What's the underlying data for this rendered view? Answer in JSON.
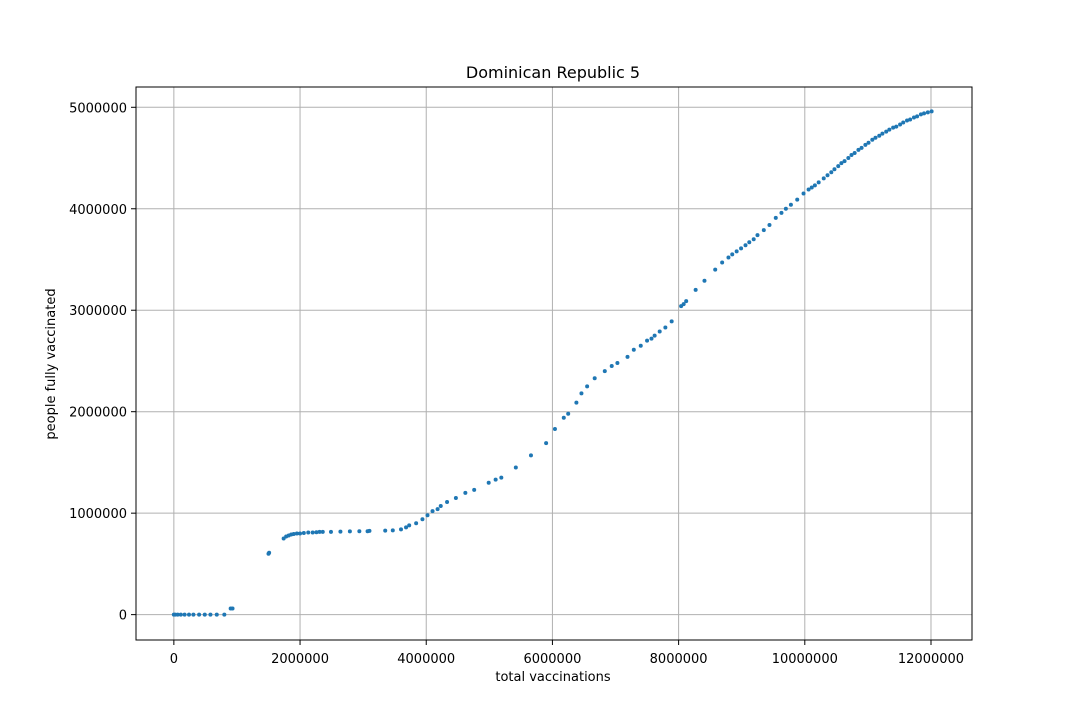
{
  "chart_data": {
    "type": "scatter",
    "title": "Dominican Republic 5",
    "xlabel": "total vaccinations",
    "ylabel": "people fully vaccinated",
    "xlim": [
      -600000,
      12650000
    ],
    "ylim": [
      -250000,
      5200000
    ],
    "xticks": [
      0,
      2000000,
      4000000,
      6000000,
      8000000,
      10000000,
      12000000
    ],
    "xtick_labels": [
      "0",
      "2000000",
      "4000000",
      "6000000",
      "8000000",
      "10000000",
      "12000000"
    ],
    "yticks": [
      0,
      1000000,
      2000000,
      3000000,
      4000000,
      5000000
    ],
    "ytick_labels": [
      "0",
      "1000000",
      "2000000",
      "3000000",
      "4000000",
      "5000000"
    ],
    "grid": true,
    "marker_color": "#1f77b4",
    "series": [
      {
        "x": [
          0,
          20000,
          60000,
          110000,
          170000,
          240000,
          310000,
          400000,
          490000,
          580000,
          680000,
          800000,
          900000,
          930000,
          1500000,
          1510000,
          1740000,
          1780000,
          1820000,
          1860000,
          1900000,
          1950000,
          2000000,
          2060000,
          2130000,
          2200000,
          2260000,
          2310000,
          2360000,
          2490000,
          2640000,
          2790000,
          2940000,
          3070000,
          3100000,
          3350000,
          3470000,
          3600000,
          3680000,
          3730000,
          3840000,
          3940000,
          4020000,
          4100000,
          4180000,
          4230000,
          4330000,
          4470000,
          4620000,
          4760000,
          4990000,
          5100000,
          5190000,
          5420000,
          5660000,
          5900000,
          6040000,
          6180000,
          6250000,
          6380000,
          6460000,
          6550000,
          6670000,
          6830000,
          6940000,
          7030000,
          7190000,
          7290000,
          7400000,
          7500000,
          7570000,
          7620000,
          7700000,
          7790000,
          7890000,
          8040000,
          8080000,
          8120000,
          8270000,
          8410000,
          8580000,
          8690000,
          8790000,
          8850000,
          8920000,
          8990000,
          9060000,
          9120000,
          9190000,
          9250000,
          9350000,
          9440000,
          9540000,
          9630000,
          9700000,
          9780000,
          9880000,
          9980000,
          10060000,
          10110000,
          10160000,
          10220000,
          10300000,
          10360000,
          10420000,
          10470000,
          10530000,
          10580000,
          10630000,
          10690000,
          10740000,
          10790000,
          10850000,
          10900000,
          10960000,
          11010000,
          11070000,
          11120000,
          11180000,
          11230000,
          11290000,
          11340000,
          11400000,
          11450000,
          11510000,
          11560000,
          11620000,
          11670000,
          11730000,
          11780000,
          11840000,
          11890000,
          11950000,
          12010000
        ],
        "y": [
          0,
          0,
          0,
          0,
          0,
          0,
          0,
          0,
          0,
          0,
          0,
          0,
          60000,
          60000,
          600000,
          610000,
          750000,
          770000,
          780000,
          790000,
          795000,
          800000,
          800000,
          805000,
          810000,
          810000,
          812000,
          815000,
          815000,
          815000,
          818000,
          820000,
          822000,
          822000,
          825000,
          828000,
          830000,
          840000,
          860000,
          880000,
          900000,
          940000,
          980000,
          1020000,
          1040000,
          1070000,
          1110000,
          1150000,
          1200000,
          1230000,
          1300000,
          1330000,
          1350000,
          1450000,
          1570000,
          1690000,
          1830000,
          1940000,
          1980000,
          2090000,
          2180000,
          2250000,
          2330000,
          2400000,
          2450000,
          2480000,
          2540000,
          2610000,
          2650000,
          2700000,
          2720000,
          2750000,
          2790000,
          2830000,
          2890000,
          3040000,
          3060000,
          3090000,
          3200000,
          3290000,
          3400000,
          3470000,
          3520000,
          3550000,
          3580000,
          3610000,
          3640000,
          3670000,
          3700000,
          3740000,
          3790000,
          3840000,
          3910000,
          3960000,
          4000000,
          4040000,
          4090000,
          4150000,
          4190000,
          4210000,
          4230000,
          4260000,
          4300000,
          4330000,
          4360000,
          4390000,
          4420000,
          4450000,
          4470000,
          4500000,
          4530000,
          4550000,
          4580000,
          4600000,
          4630000,
          4650000,
          4680000,
          4700000,
          4720000,
          4740000,
          4760000,
          4780000,
          4800000,
          4810000,
          4830000,
          4850000,
          4870000,
          4880000,
          4900000,
          4910000,
          4930000,
          4940000,
          4950000,
          4960000
        ]
      }
    ]
  }
}
